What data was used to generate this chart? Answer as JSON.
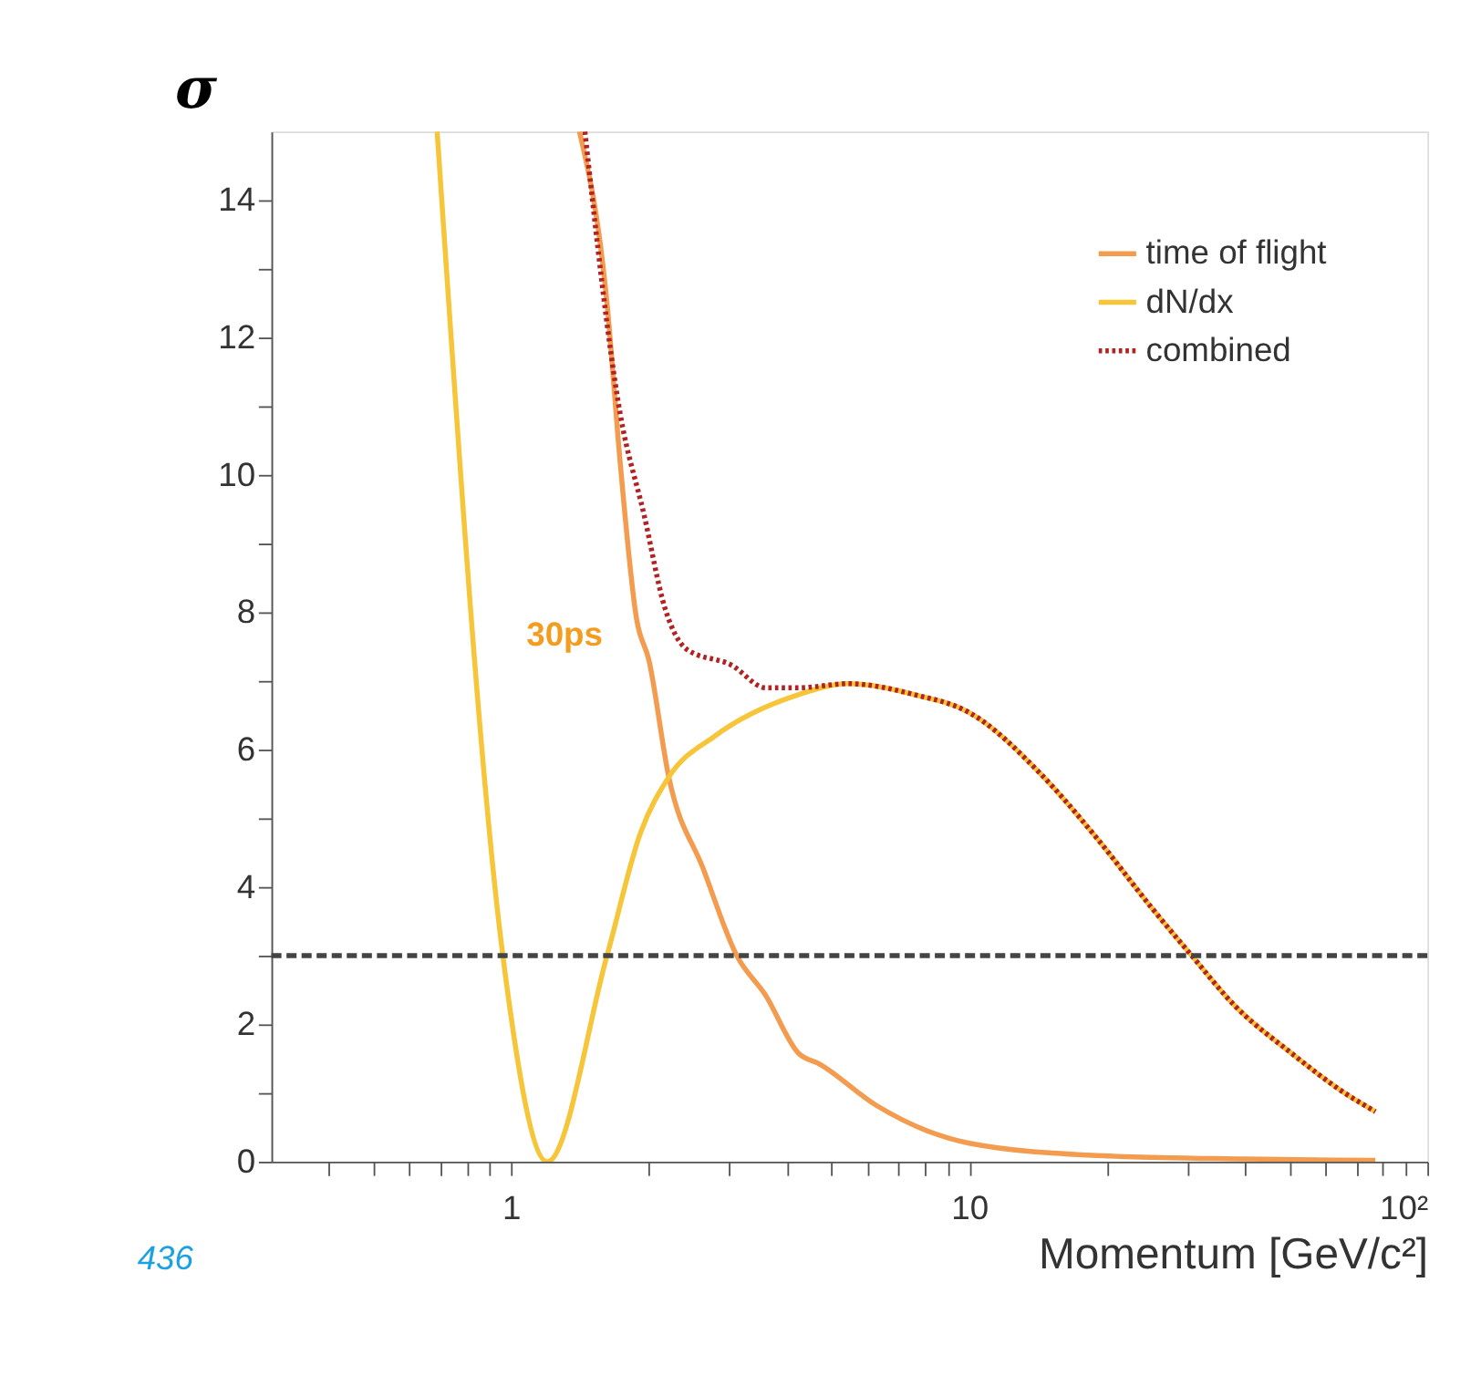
{
  "chart_data": {
    "type": "line",
    "xlabel": "Momentum [GeV/c²]",
    "ylabel": "σ",
    "log": "x",
    "xlim": [
      0.3,
      100
    ],
    "ylim": [
      0,
      15
    ],
    "xticks": [
      {
        "value": 0.4,
        "label": null
      },
      {
        "value": 0.5,
        "label": null
      },
      {
        "value": 0.6,
        "label": null
      },
      {
        "value": 0.7,
        "label": null
      },
      {
        "value": 0.8,
        "label": null
      },
      {
        "value": 0.9,
        "label": null
      },
      1,
      {
        "value": 2,
        "label": null
      },
      {
        "value": 3,
        "label": null
      },
      {
        "value": 4,
        "label": null
      },
      {
        "value": 5,
        "label": null
      },
      {
        "value": 6,
        "label": null
      },
      {
        "value": 7,
        "label": null
      },
      {
        "value": 8,
        "label": null
      },
      {
        "value": 9,
        "label": null
      },
      10,
      {
        "value": 20,
        "label": null
      },
      {
        "value": 30,
        "label": null
      },
      {
        "value": 40,
        "label": null
      },
      {
        "value": 50,
        "label": null
      },
      {
        "value": 60,
        "label": null
      },
      {
        "value": 70,
        "label": null
      },
      {
        "value": 80,
        "label": null
      },
      {
        "value": 90,
        "label": null
      },
      {
        "value": 100,
        "label": "10²"
      }
    ],
    "yticks": [
      0,
      {
        "value": 1,
        "label": null
      },
      2,
      {
        "value": 3,
        "label": null
      },
      4,
      {
        "value": 5,
        "label": null
      },
      6,
      {
        "value": 7,
        "label": null
      },
      8,
      {
        "value": 9,
        "label": null
      },
      10,
      {
        "value": 11,
        "label": null
      },
      12,
      {
        "value": 13,
        "label": null
      },
      14
    ],
    "grid": false,
    "legend": "top right",
    "series": [
      {
        "name": "time of flight",
        "color": "#f39c4f",
        "line_style": "solid",
        "x": [
          1.41,
          1.62,
          1.73,
          1.88,
          2.0,
          2.21,
          2.63,
          3.11,
          3.59,
          4.24,
          4.72,
          6.27,
          10,
          19,
          40,
          77
        ],
        "values": [
          15,
          12.5,
          10.2,
          7.9,
          7.3,
          5.6,
          4.26,
          3.0,
          2.43,
          1.58,
          1.42,
          0.82,
          0.27,
          0.09,
          0.04,
          0.02
        ]
      },
      {
        "name": "dN/dx",
        "color": "#f7c53a",
        "line_style": "solid",
        "x": [
          0.69,
          0.96,
          1.2,
          1.62,
          1.92,
          2.21,
          2.79,
          4.24,
          5.44,
          7.6,
          10,
          14.4,
          19.0,
          25.0,
          30.6,
          38,
          50.5,
          66,
          77
        ],
        "values": [
          15,
          3.0,
          0,
          3.0,
          4.8,
          5.6,
          6.2,
          6.8,
          6.96,
          6.8,
          6.54,
          5.63,
          4.71,
          3.7,
          3.0,
          2.27,
          1.58,
          1.0,
          0.73
        ]
      },
      {
        "name": "combined",
        "color": "#b22222",
        "line_style": "dotted",
        "x": [
          1.45,
          1.73,
          1.95,
          2.17,
          2.42,
          3.03,
          3.6,
          4.24,
          5.44,
          7.6,
          10,
          14.4,
          19.0,
          25.0,
          30.6,
          38,
          50.5,
          66,
          77
        ],
        "values": [
          15,
          10.9,
          9.43,
          8.05,
          7.46,
          7.23,
          6.9,
          6.9,
          6.96,
          6.8,
          6.54,
          5.63,
          4.71,
          3.7,
          3.0,
          2.27,
          1.58,
          1.0,
          0.73
        ]
      }
    ],
    "ref_lines": [
      {
        "axis": "y",
        "value": 3,
        "label": null,
        "color": "#444444",
        "line_style": "dashed"
      }
    ],
    "annotations": [
      "30ps",
      "436"
    ]
  }
}
